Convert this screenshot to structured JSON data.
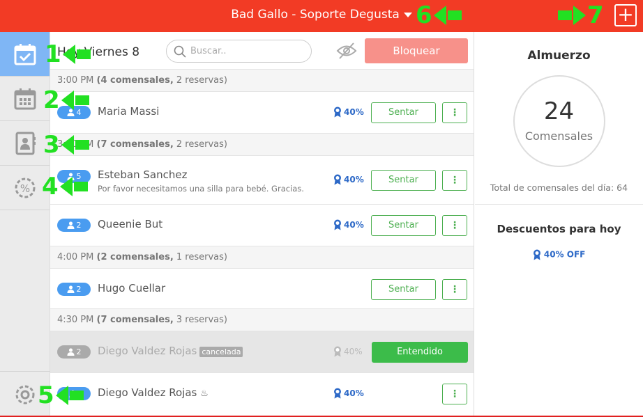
{
  "header": {
    "title": "Bad Gallo - Soporte Degusta",
    "add_icon": "plus-icon"
  },
  "sidebar": {
    "items": [
      {
        "icon": "calendar-check-icon",
        "active": true
      },
      {
        "icon": "calendar-grid-icon"
      },
      {
        "icon": "contacts-book-icon"
      },
      {
        "icon": "discount-gear-icon"
      }
    ],
    "settings_icon": "gear-icon"
  },
  "toolbar": {
    "day": "Hoy Viernes 8",
    "search_placeholder": "Buscar..",
    "block_label": "Bloquear"
  },
  "sections": [
    {
      "time": "3:00 PM",
      "diners": "(4 comensales,",
      "res": "2 reservas)"
    },
    {
      "time": "3:30 PM",
      "diners": "(7 comensales,",
      "res": "2 reservas)"
    },
    {
      "time": "4:00 PM",
      "diners": "(2 comensales,",
      "res": "1 reservas)"
    },
    {
      "time": "4:30 PM",
      "diners": "(7 comensales,",
      "res": "3 reservas)"
    }
  ],
  "reservations": [
    {
      "party": "4",
      "name": "Maria Massi",
      "discount": "40%",
      "action": "Sentar",
      "more": "⋮"
    },
    {
      "party": "5",
      "name": "Esteban Sanchez",
      "note": "Por favor necesitamos una silla para bebé. Gracias.",
      "discount": "40%",
      "action": "Sentar",
      "more": "⋮"
    },
    {
      "party": "2",
      "name": "Queenie But",
      "discount": "40%",
      "action": "Sentar",
      "more": "⋮"
    },
    {
      "party": "2",
      "name": "Hugo Cuellar",
      "action": "Sentar",
      "more": "⋮"
    },
    {
      "party": "2",
      "name": "Diego Valdez Rojas",
      "tag": "cancelada",
      "discount": "40%",
      "action": "Entendido"
    },
    {
      "party": "",
      "name": "Diego Valdez Rojas",
      "discount": "40%",
      "more": "⋮"
    }
  ],
  "summary": {
    "meal": "Almuerzo",
    "count": "24",
    "count_label": "Comensales",
    "total": "Total de comensales del día: 64",
    "discounts_title": "Descuentos para hoy",
    "discount_item": "40% OFF"
  },
  "annotations": [
    "1",
    "2",
    "3",
    "4",
    "5",
    "6",
    "7"
  ],
  "colors": {
    "topbar": "#f23b25",
    "accent": "#4caf50",
    "blue": "#4a9cf0",
    "annotation": "#22e022"
  }
}
